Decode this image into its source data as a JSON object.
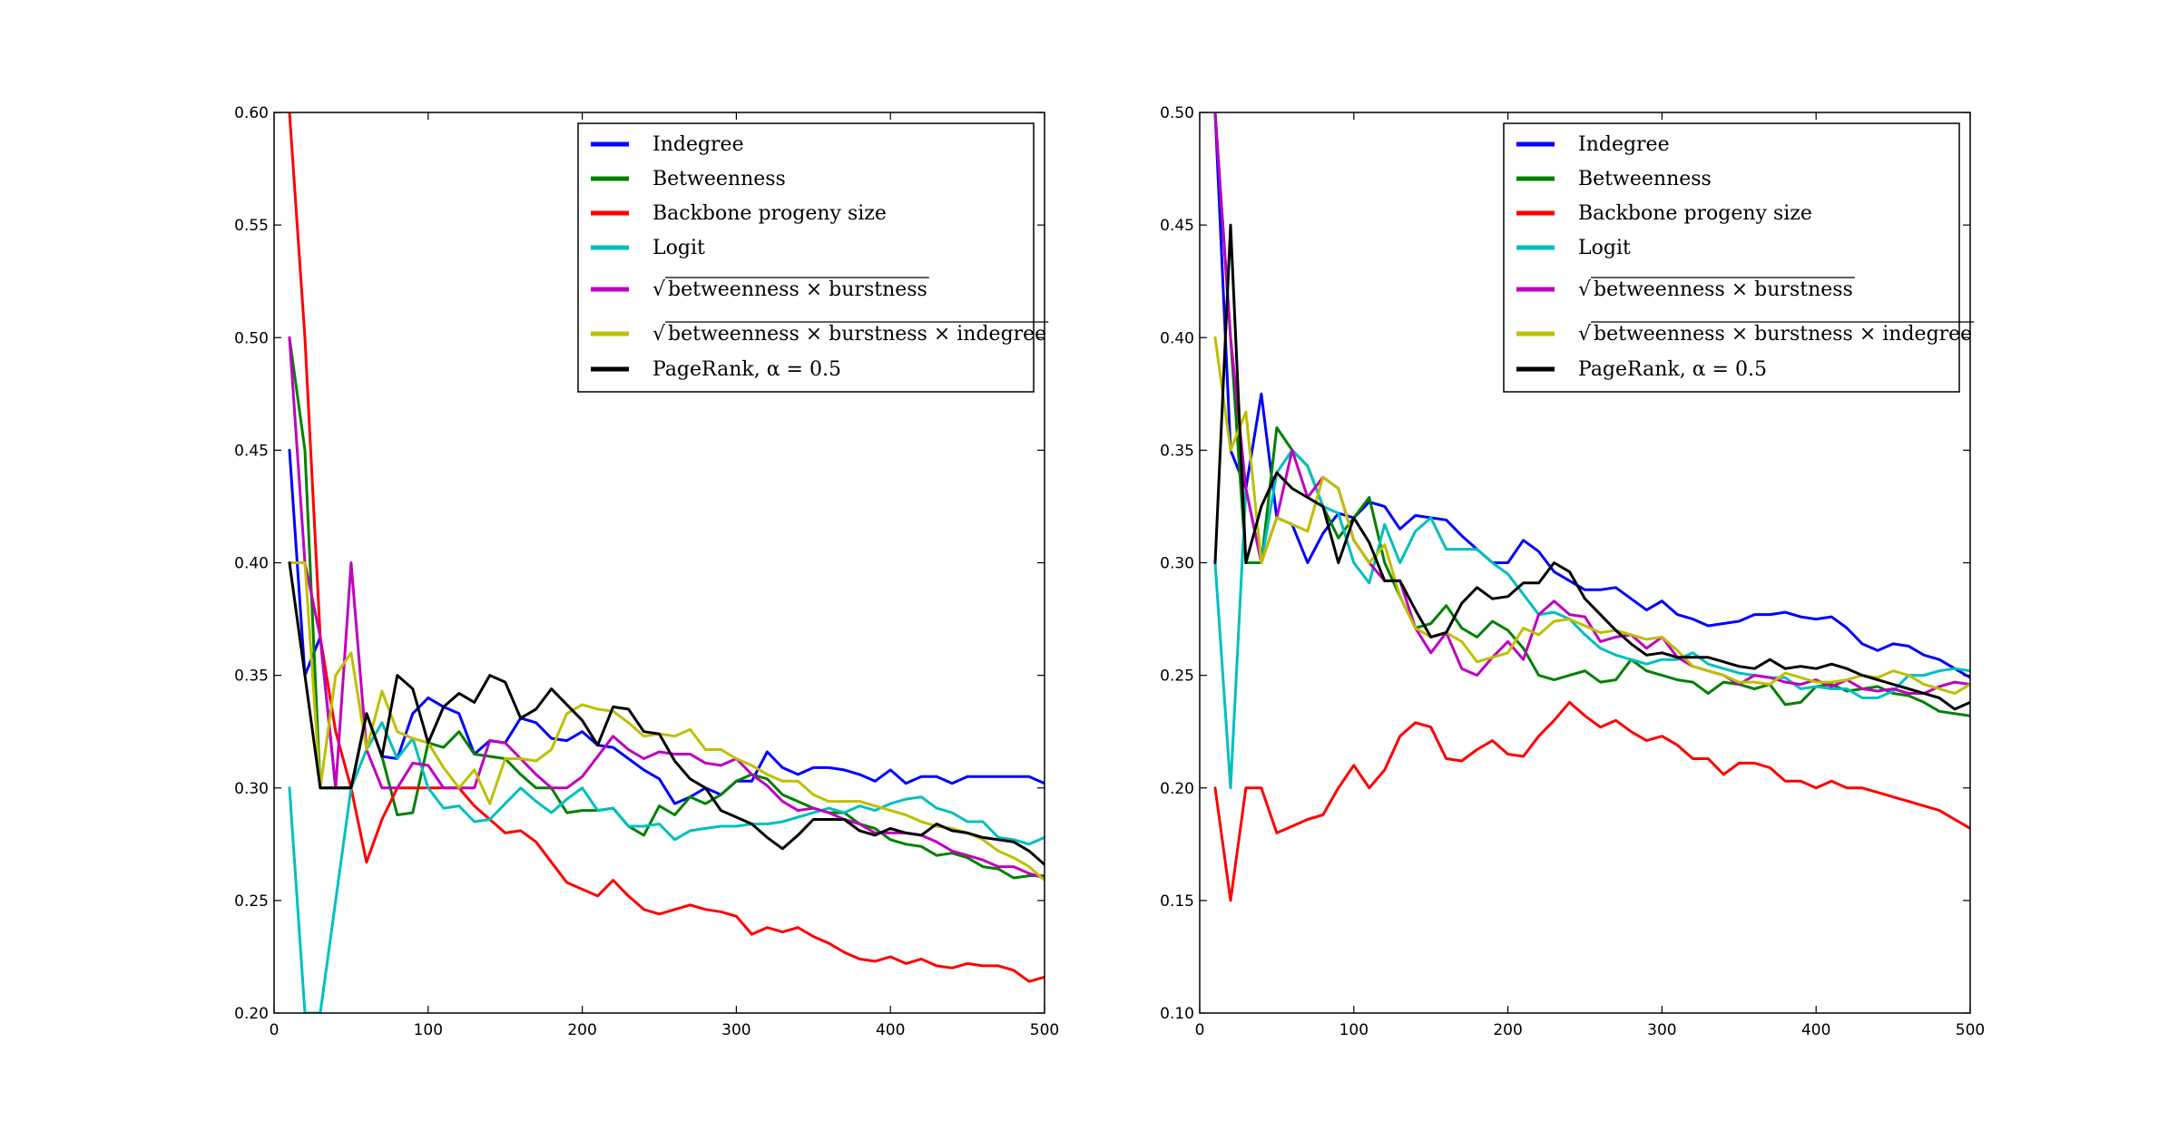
{
  "chart_data": [
    {
      "type": "line",
      "title": "",
      "xlabel": "",
      "ylabel": "",
      "xlim": [
        0,
        500
      ],
      "ylim": [
        0.2,
        0.6
      ],
      "xticks": [
        "0",
        "100",
        "200",
        "300",
        "400",
        "500"
      ],
      "yticks": [
        "0.20",
        "0.25",
        "0.30",
        "0.35",
        "0.40",
        "0.45",
        "0.50",
        "0.55",
        "0.60"
      ],
      "grid": false,
      "legend_position": "upper-right",
      "x": [
        10,
        20,
        30,
        40,
        50,
        60,
        70,
        80,
        90,
        100,
        110,
        120,
        130,
        140,
        150,
        160,
        170,
        180,
        190,
        200,
        210,
        220,
        230,
        240,
        250,
        260,
        270,
        280,
        290,
        300,
        310,
        320,
        330,
        340,
        350,
        360,
        370,
        380,
        390,
        400,
        410,
        420,
        430,
        440,
        450,
        460,
        470,
        480,
        490,
        500
      ],
      "series": [
        {
          "name": "Indegree",
          "color": "#0000ff",
          "values": [
            0.45,
            0.35,
            0.367,
            0.3,
            0.3,
            0.333,
            0.314,
            0.313,
            0.333,
            0.34,
            0.336,
            0.333,
            0.315,
            0.321,
            0.32,
            0.331,
            0.329,
            0.322,
            0.321,
            0.325,
            0.319,
            0.318,
            0.313,
            0.308,
            0.304,
            0.293,
            0.296,
            0.3,
            0.297,
            0.303,
            0.303,
            0.316,
            0.309,
            0.306,
            0.309,
            0.309,
            0.308,
            0.306,
            0.303,
            0.308,
            0.302,
            0.305,
            0.305,
            0.302,
            0.305,
            0.305,
            0.305,
            0.305,
            0.305,
            0.302
          ]
        },
        {
          "name": "Betweenness",
          "color": "#008000",
          "values": [
            0.5,
            0.45,
            0.3,
            0.3,
            0.3,
            0.333,
            0.314,
            0.288,
            0.289,
            0.32,
            0.318,
            0.325,
            0.315,
            0.314,
            0.313,
            0.306,
            0.3,
            0.3,
            0.289,
            0.29,
            0.29,
            0.291,
            0.283,
            0.279,
            0.292,
            0.288,
            0.296,
            0.293,
            0.297,
            0.303,
            0.306,
            0.304,
            0.297,
            0.294,
            0.291,
            0.289,
            0.289,
            0.284,
            0.282,
            0.277,
            0.275,
            0.274,
            0.27,
            0.271,
            0.269,
            0.265,
            0.264,
            0.26,
            0.261,
            0.261
          ]
        },
        {
          "name": "Backbone progeny size",
          "color": "#ff0000",
          "values": [
            0.6,
            0.5,
            0.367,
            0.325,
            0.3,
            0.267,
            0.286,
            0.3,
            0.3,
            0.3,
            0.3,
            0.3,
            0.292,
            0.286,
            0.28,
            0.281,
            0.276,
            0.267,
            0.258,
            0.255,
            0.252,
            0.259,
            0.252,
            0.246,
            0.244,
            0.246,
            0.248,
            0.246,
            0.245,
            0.243,
            0.235,
            0.238,
            0.236,
            0.238,
            0.234,
            0.231,
            0.227,
            0.224,
            0.223,
            0.225,
            0.222,
            0.224,
            0.221,
            0.22,
            0.222,
            0.221,
            0.221,
            0.219,
            0.214,
            0.216
          ]
        },
        {
          "name": "Logit",
          "color": "#00bfbf",
          "values": [
            0.3,
            0.2,
            0.2,
            0.25,
            0.3,
            0.317,
            0.329,
            0.313,
            0.322,
            0.3,
            0.291,
            0.292,
            0.285,
            0.286,
            0.293,
            0.3,
            0.294,
            0.289,
            0.295,
            0.3,
            0.29,
            0.291,
            0.283,
            0.283,
            0.284,
            0.277,
            0.281,
            0.282,
            0.283,
            0.283,
            0.284,
            0.284,
            0.285,
            0.287,
            0.289,
            0.291,
            0.289,
            0.292,
            0.29,
            0.293,
            0.295,
            0.296,
            0.291,
            0.289,
            0.285,
            0.285,
            0.278,
            0.277,
            0.275,
            0.278
          ]
        },
        {
          "name": "√betweenness × burstness",
          "color": "#bf00bf",
          "values": [
            0.5,
            0.4,
            0.367,
            0.3,
            0.4,
            0.317,
            0.3,
            0.3,
            0.311,
            0.31,
            0.3,
            0.3,
            0.3,
            0.321,
            0.32,
            0.313,
            0.306,
            0.3,
            0.3,
            0.305,
            0.314,
            0.323,
            0.317,
            0.313,
            0.316,
            0.315,
            0.315,
            0.311,
            0.31,
            0.313,
            0.306,
            0.301,
            0.294,
            0.29,
            0.291,
            0.289,
            0.286,
            0.284,
            0.28,
            0.28,
            0.28,
            0.279,
            0.276,
            0.272,
            0.27,
            0.268,
            0.265,
            0.265,
            0.262,
            0.26
          ]
        },
        {
          "name": "√betweenness × burstness × indegree",
          "color": "#bfbf00",
          "values": [
            0.4,
            0.4,
            0.3,
            0.35,
            0.36,
            0.317,
            0.343,
            0.325,
            0.322,
            0.32,
            0.309,
            0.3,
            0.308,
            0.293,
            0.313,
            0.313,
            0.312,
            0.317,
            0.333,
            0.337,
            0.335,
            0.334,
            0.329,
            0.323,
            0.324,
            0.323,
            0.326,
            0.317,
            0.317,
            0.313,
            0.31,
            0.306,
            0.303,
            0.303,
            0.297,
            0.294,
            0.294,
            0.294,
            0.292,
            0.29,
            0.288,
            0.285,
            0.283,
            0.282,
            0.28,
            0.277,
            0.272,
            0.269,
            0.265,
            0.259
          ]
        },
        {
          "name": "PageRank, α = 0.5",
          "color": "#000000",
          "values": [
            0.4,
            0.35,
            0.3,
            0.3,
            0.3,
            0.333,
            0.314,
            0.35,
            0.344,
            0.32,
            0.336,
            0.342,
            0.338,
            0.35,
            0.347,
            0.331,
            0.335,
            0.344,
            0.337,
            0.33,
            0.319,
            0.336,
            0.335,
            0.325,
            0.324,
            0.312,
            0.304,
            0.3,
            0.29,
            0.287,
            0.284,
            0.278,
            0.273,
            0.279,
            0.286,
            0.286,
            0.286,
            0.281,
            0.279,
            0.282,
            0.28,
            0.279,
            0.284,
            0.281,
            0.28,
            0.278,
            0.277,
            0.276,
            0.272,
            0.266
          ]
        }
      ]
    },
    {
      "type": "line",
      "title": "",
      "xlabel": "",
      "ylabel": "",
      "xlim": [
        0,
        500
      ],
      "ylim": [
        0.1,
        0.5
      ],
      "xticks": [
        "0",
        "100",
        "200",
        "300",
        "400",
        "500"
      ],
      "yticks": [
        "0.10",
        "0.15",
        "0.20",
        "0.25",
        "0.30",
        "0.35",
        "0.40",
        "0.45",
        "0.50"
      ],
      "grid": false,
      "legend_position": "upper-right",
      "x": [
        10,
        20,
        30,
        40,
        50,
        60,
        70,
        80,
        90,
        100,
        110,
        120,
        130,
        140,
        150,
        160,
        170,
        180,
        190,
        200,
        210,
        220,
        230,
        240,
        250,
        260,
        270,
        280,
        290,
        300,
        310,
        320,
        330,
        340,
        350,
        360,
        370,
        380,
        390,
        400,
        410,
        420,
        430,
        440,
        450,
        460,
        470,
        480,
        490,
        500
      ],
      "series": [
        {
          "name": "Indegree",
          "color": "#0000ff",
          "values": [
            0.5,
            0.35,
            0.333,
            0.375,
            0.32,
            0.317,
            0.3,
            0.313,
            0.322,
            0.32,
            0.327,
            0.325,
            0.315,
            0.321,
            0.32,
            0.319,
            0.312,
            0.306,
            0.3,
            0.3,
            0.31,
            0.305,
            0.296,
            0.292,
            0.288,
            0.288,
            0.289,
            0.284,
            0.279,
            0.283,
            0.277,
            0.275,
            0.272,
            0.273,
            0.274,
            0.277,
            0.277,
            0.278,
            0.276,
            0.275,
            0.276,
            0.271,
            0.264,
            0.261,
            0.264,
            0.263,
            0.259,
            0.257,
            0.253,
            0.249
          ]
        },
        {
          "name": "Betweenness",
          "color": "#008000",
          "values": [
            0.5,
            0.4,
            0.3,
            0.3,
            0.36,
            0.35,
            0.343,
            0.325,
            0.311,
            0.32,
            0.329,
            0.3,
            0.285,
            0.271,
            0.273,
            0.281,
            0.271,
            0.267,
            0.274,
            0.27,
            0.262,
            0.25,
            0.248,
            0.25,
            0.252,
            0.247,
            0.248,
            0.257,
            0.252,
            0.25,
            0.248,
            0.247,
            0.242,
            0.247,
            0.246,
            0.244,
            0.246,
            0.237,
            0.238,
            0.245,
            0.246,
            0.243,
            0.244,
            0.245,
            0.242,
            0.241,
            0.238,
            0.234,
            0.233,
            0.232
          ]
        },
        {
          "name": "Backbone progeny size",
          "color": "#ff0000",
          "values": [
            0.2,
            0.15,
            0.2,
            0.2,
            0.18,
            0.183,
            0.186,
            0.188,
            0.2,
            0.21,
            0.2,
            0.208,
            0.223,
            0.229,
            0.227,
            0.213,
            0.212,
            0.217,
            0.221,
            0.215,
            0.214,
            0.223,
            0.23,
            0.238,
            0.232,
            0.227,
            0.23,
            0.225,
            0.221,
            0.223,
            0.219,
            0.213,
            0.213,
            0.206,
            0.211,
            0.211,
            0.209,
            0.203,
            0.203,
            0.2,
            0.203,
            0.2,
            0.2,
            0.198,
            0.196,
            0.194,
            0.192,
            0.19,
            0.186,
            0.182
          ]
        },
        {
          "name": "Logit",
          "color": "#00bfbf",
          "values": [
            0.3,
            0.2,
            0.333,
            0.3,
            0.34,
            0.35,
            0.343,
            0.325,
            0.322,
            0.3,
            0.291,
            0.317,
            0.3,
            0.314,
            0.32,
            0.306,
            0.306,
            0.306,
            0.3,
            0.295,
            0.286,
            0.277,
            0.278,
            0.275,
            0.268,
            0.262,
            0.259,
            0.257,
            0.255,
            0.257,
            0.257,
            0.26,
            0.255,
            0.253,
            0.251,
            0.25,
            0.249,
            0.249,
            0.244,
            0.245,
            0.244,
            0.244,
            0.24,
            0.24,
            0.243,
            0.25,
            0.25,
            0.252,
            0.253,
            0.252
          ]
        },
        {
          "name": "√betweenness × burstness",
          "color": "#bf00bf",
          "values": [
            0.5,
            0.4,
            0.333,
            0.3,
            0.32,
            0.35,
            0.329,
            0.338,
            0.333,
            0.31,
            0.3,
            0.292,
            0.292,
            0.271,
            0.26,
            0.269,
            0.253,
            0.25,
            0.258,
            0.265,
            0.257,
            0.277,
            0.283,
            0.277,
            0.276,
            0.265,
            0.267,
            0.268,
            0.262,
            0.267,
            0.258,
            0.254,
            0.252,
            0.25,
            0.246,
            0.25,
            0.249,
            0.247,
            0.246,
            0.248,
            0.245,
            0.248,
            0.244,
            0.243,
            0.244,
            0.242,
            0.242,
            0.245,
            0.247,
            0.246
          ]
        },
        {
          "name": "√betweenness × burstness × indegree",
          "color": "#bfbf00",
          "values": [
            0.4,
            0.35,
            0.367,
            0.3,
            0.32,
            0.317,
            0.314,
            0.338,
            0.333,
            0.31,
            0.3,
            0.308,
            0.285,
            0.271,
            0.267,
            0.269,
            0.265,
            0.256,
            0.258,
            0.26,
            0.271,
            0.268,
            0.274,
            0.275,
            0.272,
            0.269,
            0.27,
            0.268,
            0.266,
            0.267,
            0.261,
            0.254,
            0.252,
            0.25,
            0.247,
            0.247,
            0.246,
            0.251,
            0.249,
            0.247,
            0.247,
            0.248,
            0.25,
            0.249,
            0.252,
            0.25,
            0.246,
            0.244,
            0.242,
            0.246
          ]
        },
        {
          "name": "PageRank, α = 0.5",
          "color": "#000000",
          "values": [
            0.3,
            0.45,
            0.3,
            0.325,
            0.34,
            0.333,
            0.329,
            0.325,
            0.3,
            0.32,
            0.309,
            0.292,
            0.292,
            0.279,
            0.267,
            0.269,
            0.282,
            0.289,
            0.284,
            0.285,
            0.291,
            0.291,
            0.3,
            0.296,
            0.284,
            0.277,
            0.27,
            0.264,
            0.259,
            0.26,
            0.258,
            0.258,
            0.258,
            0.256,
            0.254,
            0.253,
            0.257,
            0.253,
            0.254,
            0.253,
            0.255,
            0.253,
            0.25,
            0.248,
            0.246,
            0.244,
            0.242,
            0.24,
            0.235,
            0.238
          ]
        }
      ]
    }
  ]
}
